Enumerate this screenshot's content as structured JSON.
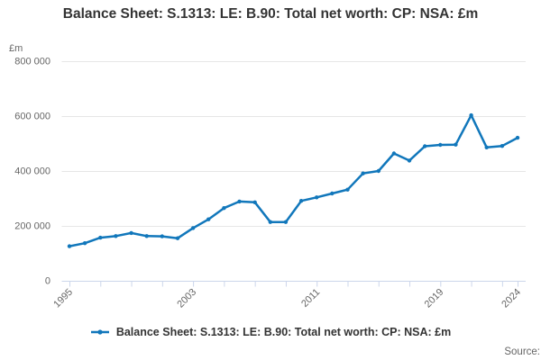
{
  "page": {
    "title": "Balance Sheet: S.1313: LE: B.90: Total net worth: CP: NSA: £m",
    "legend": {
      "label": "Balance Sheet: S.1313: LE: B.90: Total net worth: CP: NSA: £m"
    },
    "source_label": "Source:"
  },
  "colors": {
    "line": "#1177bb",
    "grid": "#e6e6e6",
    "axis": "#ccd6eb",
    "tick_text": "#666666",
    "title_text": "#333333",
    "source_text": "#666666"
  },
  "chart_data": {
    "type": "line",
    "title": "Balance Sheet: S.1313: LE: B.90: Total net worth: CP: NSA: £m",
    "xlabel": "",
    "ylabel": "£m",
    "x": [
      1995,
      1996,
      1997,
      1998,
      1999,
      2000,
      2001,
      2002,
      2003,
      2004,
      2005,
      2006,
      2007,
      2008,
      2009,
      2010,
      2011,
      2012,
      2013,
      2014,
      2015,
      2016,
      2017,
      2018,
      2019,
      2020,
      2021,
      2022,
      2023,
      2024
    ],
    "values": [
      126000,
      137000,
      157000,
      163000,
      174000,
      163000,
      162000,
      155000,
      192000,
      224000,
      265000,
      289000,
      286000,
      214000,
      214000,
      291000,
      304000,
      318000,
      332000,
      391000,
      400000,
      464000,
      438000,
      490000,
      495000,
      496000,
      603000,
      486000,
      491000,
      521000
    ],
    "ylim": [
      0,
      800000
    ],
    "y_ticks": [
      0,
      200000,
      400000,
      600000,
      800000
    ],
    "y_tick_labels": [
      "0",
      "200 000",
      "400 000",
      "600 000",
      "800 000"
    ],
    "x_labeled_ticks": [
      1995,
      2003,
      2011,
      2019,
      2024
    ],
    "x_tick_interval": 2,
    "grid": true,
    "legend_position": "bottom",
    "marker": "circle"
  }
}
